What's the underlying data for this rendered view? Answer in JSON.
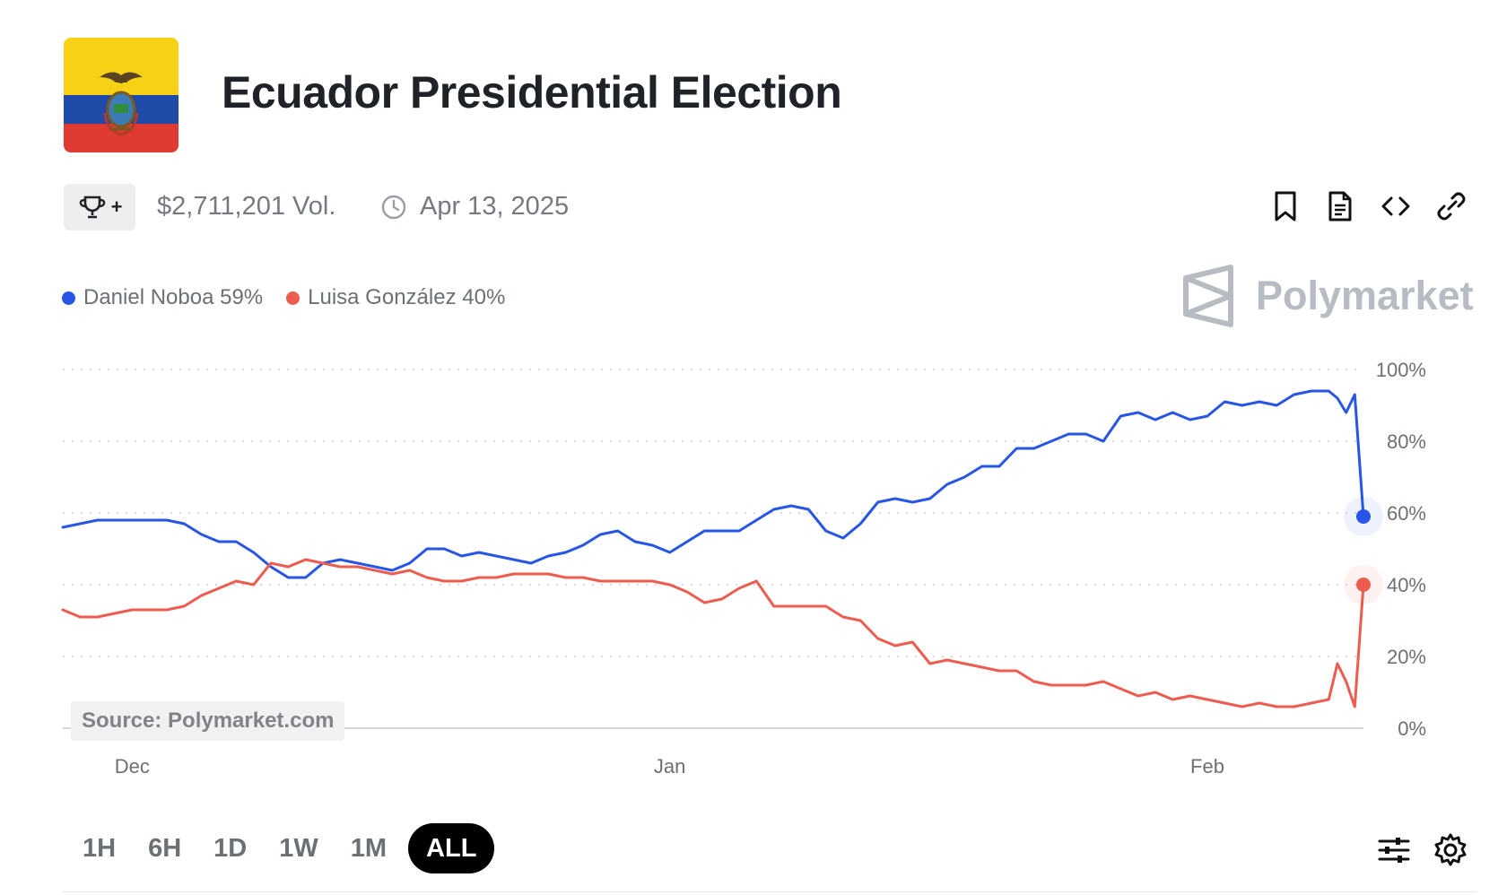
{
  "page": {
    "title": "Ecuador Presidential Election",
    "volume": "$2,711,201 Vol.",
    "end_date": "Apr 13, 2025",
    "watermark": "Polymarket",
    "source": "Source: Polymarket.com",
    "trophy_label": "+"
  },
  "legend": [
    {
      "label": "Daniel Noboa 59%",
      "color": "#2756e6"
    },
    {
      "label": "Luisa González 40%",
      "color": "#ec5d4f"
    }
  ],
  "toolbar_icons": [
    "bookmark-icon",
    "document-icon",
    "embed-code-icon",
    "link-icon"
  ],
  "ranges": [
    {
      "label": "1H",
      "active": false
    },
    {
      "label": "6H",
      "active": false
    },
    {
      "label": "1D",
      "active": false
    },
    {
      "label": "1W",
      "active": false
    },
    {
      "label": "1M",
      "active": false
    },
    {
      "label": "ALL",
      "active": true
    }
  ],
  "chart_data": {
    "type": "line",
    "ylim": [
      0,
      100
    ],
    "yticks": [
      "100%",
      "80%",
      "60%",
      "40%",
      "20%",
      "0%"
    ],
    "xticks": [
      {
        "label": "Dec",
        "x": 4
      },
      {
        "label": "Jan",
        "x": 35
      },
      {
        "label": "Feb",
        "x": 66
      }
    ],
    "xlim": [
      0,
      75
    ],
    "grid": true,
    "series": [
      {
        "name": "Daniel Noboa",
        "color": "#2756e6",
        "last_value": 59,
        "points": [
          [
            0,
            56
          ],
          [
            1,
            57
          ],
          [
            2,
            58
          ],
          [
            3,
            58
          ],
          [
            5,
            58
          ],
          [
            6,
            58
          ],
          [
            7,
            57
          ],
          [
            8,
            54
          ],
          [
            9,
            52
          ],
          [
            10,
            52
          ],
          [
            11,
            49
          ],
          [
            12,
            45
          ],
          [
            13,
            42
          ],
          [
            14,
            42
          ],
          [
            15,
            46
          ],
          [
            16,
            47
          ],
          [
            17,
            46
          ],
          [
            18,
            45
          ],
          [
            19,
            44
          ],
          [
            20,
            46
          ],
          [
            21,
            50
          ],
          [
            22,
            50
          ],
          [
            23,
            48
          ],
          [
            24,
            49
          ],
          [
            25,
            48
          ],
          [
            26,
            47
          ],
          [
            27,
            46
          ],
          [
            28,
            48
          ],
          [
            29,
            49
          ],
          [
            30,
            51
          ],
          [
            31,
            54
          ],
          [
            32,
            55
          ],
          [
            33,
            52
          ],
          [
            34,
            51
          ],
          [
            35,
            49
          ],
          [
            36,
            52
          ],
          [
            37,
            55
          ],
          [
            38,
            55
          ],
          [
            39,
            55
          ],
          [
            40,
            58
          ],
          [
            41,
            61
          ],
          [
            42,
            62
          ],
          [
            43,
            61
          ],
          [
            44,
            55
          ],
          [
            45,
            53
          ],
          [
            46,
            57
          ],
          [
            47,
            63
          ],
          [
            48,
            64
          ],
          [
            49,
            63
          ],
          [
            50,
            64
          ],
          [
            51,
            68
          ],
          [
            52,
            70
          ],
          [
            53,
            73
          ],
          [
            54,
            73
          ],
          [
            55,
            78
          ],
          [
            56,
            78
          ],
          [
            57,
            80
          ],
          [
            58,
            82
          ],
          [
            59,
            82
          ],
          [
            60,
            80
          ],
          [
            61,
            87
          ],
          [
            62,
            88
          ],
          [
            63,
            86
          ],
          [
            64,
            88
          ],
          [
            65,
            86
          ],
          [
            66,
            87
          ],
          [
            67,
            91
          ],
          [
            68,
            90
          ],
          [
            69,
            91
          ],
          [
            70,
            90
          ],
          [
            71,
            93
          ],
          [
            72,
            94
          ],
          [
            73,
            94
          ],
          [
            73.5,
            92
          ],
          [
            74,
            88
          ],
          [
            74.5,
            93
          ],
          [
            75,
            59
          ]
        ]
      },
      {
        "name": "Luisa González",
        "color": "#ec5d4f",
        "last_value": 40,
        "points": [
          [
            0,
            33
          ],
          [
            1,
            31
          ],
          [
            2,
            31
          ],
          [
            3,
            32
          ],
          [
            4,
            33
          ],
          [
            5,
            33
          ],
          [
            6,
            33
          ],
          [
            7,
            34
          ],
          [
            8,
            37
          ],
          [
            9,
            39
          ],
          [
            10,
            41
          ],
          [
            11,
            40
          ],
          [
            12,
            46
          ],
          [
            13,
            45
          ],
          [
            14,
            47
          ],
          [
            15,
            46
          ],
          [
            16,
            45
          ],
          [
            17,
            45
          ],
          [
            18,
            44
          ],
          [
            19,
            43
          ],
          [
            20,
            44
          ],
          [
            21,
            42
          ],
          [
            22,
            41
          ],
          [
            23,
            41
          ],
          [
            24,
            42
          ],
          [
            25,
            42
          ],
          [
            26,
            43
          ],
          [
            27,
            43
          ],
          [
            28,
            43
          ],
          [
            29,
            42
          ],
          [
            30,
            42
          ],
          [
            31,
            41
          ],
          [
            32,
            41
          ],
          [
            33,
            41
          ],
          [
            34,
            41
          ],
          [
            35,
            40
          ],
          [
            36,
            38
          ],
          [
            37,
            35
          ],
          [
            38,
            36
          ],
          [
            39,
            39
          ],
          [
            40,
            41
          ],
          [
            41,
            34
          ],
          [
            42,
            34
          ],
          [
            43,
            34
          ],
          [
            44,
            34
          ],
          [
            45,
            31
          ],
          [
            46,
            30
          ],
          [
            47,
            25
          ],
          [
            48,
            23
          ],
          [
            49,
            24
          ],
          [
            50,
            18
          ],
          [
            51,
            19
          ],
          [
            52,
            18
          ],
          [
            53,
            17
          ],
          [
            54,
            16
          ],
          [
            55,
            16
          ],
          [
            56,
            13
          ],
          [
            57,
            12
          ],
          [
            58,
            12
          ],
          [
            59,
            12
          ],
          [
            60,
            13
          ],
          [
            61,
            11
          ],
          [
            62,
            9
          ],
          [
            63,
            10
          ],
          [
            64,
            8
          ],
          [
            65,
            9
          ],
          [
            66,
            8
          ],
          [
            67,
            7
          ],
          [
            68,
            6
          ],
          [
            69,
            7
          ],
          [
            70,
            6
          ],
          [
            71,
            6
          ],
          [
            72,
            7
          ],
          [
            73,
            8
          ],
          [
            73.5,
            18
          ],
          [
            74,
            13
          ],
          [
            74.5,
            6
          ],
          [
            75,
            40
          ]
        ]
      }
    ]
  }
}
